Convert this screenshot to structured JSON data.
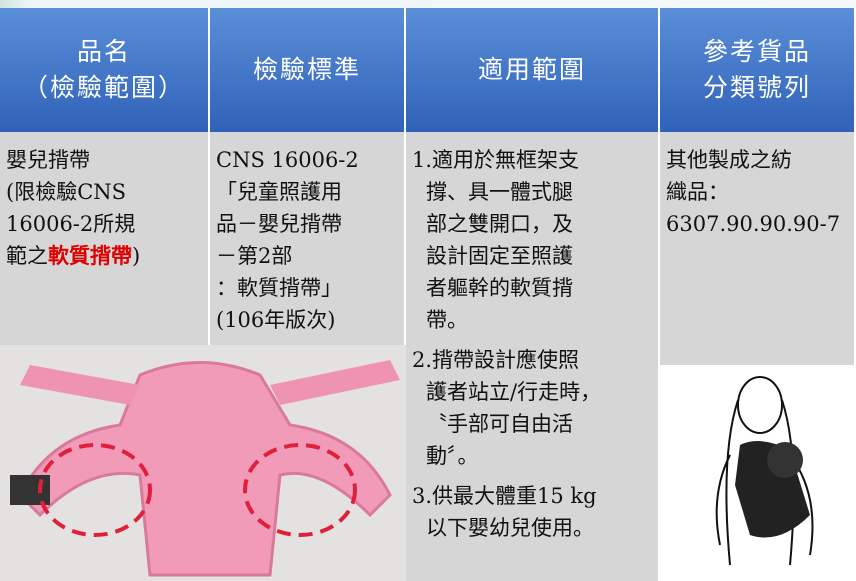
{
  "header": {
    "columns": [
      [
        "品名",
        "（檢驗範圍）"
      ],
      [
        "檢驗標準"
      ],
      [
        "適用範圍"
      ],
      [
        "參考貨品",
        "分類號列"
      ]
    ]
  },
  "row": {
    "name": {
      "lines": [
        "嬰兒揹帶",
        "(限檢驗CNS",
        "16006-2所規"
      ],
      "last": {
        "prefix": "範之",
        "highlight": "軟質揹帶",
        "suffix": ")"
      }
    },
    "standard": [
      "CNS 16006-2",
      "「兒童照護用",
      "品－嬰兒揹帶",
      "－第2部",
      "：軟質揹帶」",
      "(106年版次)"
    ],
    "scope": [
      [
        "1.適用於無框架支",
        "撐、具一體式腿",
        "部之雙開口，及",
        "設計固定至照護",
        "者軀幹的軟質揹",
        "帶。"
      ],
      [
        "2.揹帶設計應使照",
        "護者站立/行走時，",
        "〝手部可自由活",
        "動〞。"
      ],
      [
        "3.供最大體重15 kg",
        "以下嬰幼兒使用。"
      ]
    ],
    "code": [
      "其他製成之紡",
      "織品：",
      "6307.90.90.90-7"
    ]
  }
}
